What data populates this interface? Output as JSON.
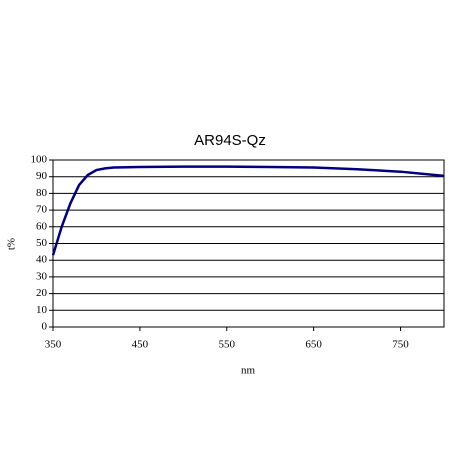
{
  "chart_data": {
    "type": "line",
    "title": "AR94S-Qz",
    "x_label": "nm",
    "y_label": "t%",
    "x": [
      350,
      360,
      370,
      380,
      390,
      400,
      410,
      420,
      450,
      500,
      550,
      600,
      650,
      700,
      750,
      800
    ],
    "series": [
      {
        "name": "AR94S-Qz",
        "color": "#00007f",
        "values": [
          43,
          60,
          74,
          85,
          91,
          94,
          95,
          95.5,
          95.8,
          96,
          96,
          95.8,
          95.5,
          94.5,
          93,
          90.5
        ]
      }
    ],
    "xlim": [
      350,
      800
    ],
    "xticks": [
      350,
      450,
      550,
      650,
      750
    ],
    "ylim": [
      0,
      100
    ],
    "yticks": [
      0,
      10,
      20,
      30,
      40,
      50,
      60,
      70,
      80,
      90,
      100
    ],
    "grid": true
  }
}
